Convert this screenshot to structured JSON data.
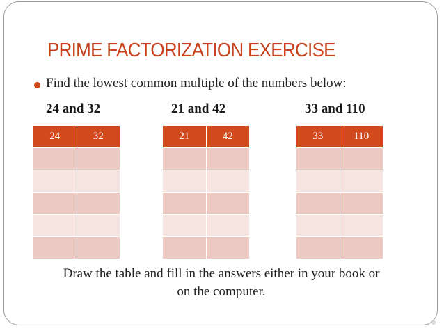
{
  "slide": {
    "title": "PRIME FACTORIZATION EXERCISE",
    "instruction": "Find the lowest common multiple of the numbers below:",
    "pairs": [
      {
        "label": "24 and 32",
        "headers": [
          "24",
          "32"
        ]
      },
      {
        "label": "21 and 42",
        "headers": [
          "21",
          "42"
        ]
      },
      {
        "label": "33 and 110",
        "headers": [
          "33",
          "110"
        ]
      }
    ],
    "footer_line1": "Draw the table and fill in the answers either in your book or",
    "footer_line2": "on the computer."
  },
  "colors": {
    "title": "#c8401c",
    "header_fill": "#d24a1c",
    "row_dark": "#ecc9c2",
    "row_light": "#f6e4e0"
  }
}
